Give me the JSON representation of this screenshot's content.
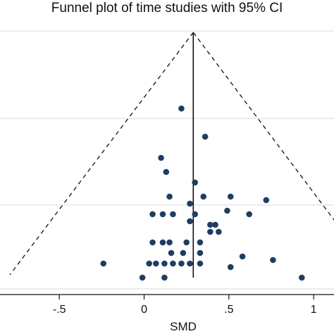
{
  "chart_data": {
    "type": "scatter",
    "title": "Funnel plot of time studies with 95% CI",
    "xlabel": "SMD",
    "ylabel": "",
    "x_ticks": [
      -0.5,
      0,
      0.5,
      1
    ],
    "x_tick_labels": [
      "-.5",
      "0",
      ".5",
      "1"
    ],
    "xlim": [
      -0.85,
      1.12
    ],
    "pooled_smd": 0.29,
    "grid": true,
    "legend": "none",
    "colors": {
      "points": "#1f3d63",
      "lines": "#111111",
      "grid": "#dde3ea"
    },
    "points": [
      {
        "x": 0.22,
        "y": 0.2
      },
      {
        "x": 0.36,
        "y": 0.28
      },
      {
        "x": 0.1,
        "y": 0.34
      },
      {
        "x": 0.13,
        "y": 0.38
      },
      {
        "x": 0.3,
        "y": 0.41
      },
      {
        "x": 0.15,
        "y": 0.45
      },
      {
        "x": 0.35,
        "y": 0.45
      },
      {
        "x": 0.51,
        "y": 0.45
      },
      {
        "x": 0.72,
        "y": 0.46
      },
      {
        "x": 0.27,
        "y": 0.47
      },
      {
        "x": 0.05,
        "y": 0.5
      },
      {
        "x": 0.11,
        "y": 0.5
      },
      {
        "x": 0.17,
        "y": 0.5
      },
      {
        "x": 0.3,
        "y": 0.5
      },
      {
        "x": 0.49,
        "y": 0.49
      },
      {
        "x": 0.62,
        "y": 0.5
      },
      {
        "x": 0.27,
        "y": 0.52
      },
      {
        "x": 0.39,
        "y": 0.53
      },
      {
        "x": 0.42,
        "y": 0.53
      },
      {
        "x": 0.39,
        "y": 0.55
      },
      {
        "x": 0.44,
        "y": 0.55
      },
      {
        "x": 0.05,
        "y": 0.58
      },
      {
        "x": 0.11,
        "y": 0.58
      },
      {
        "x": 0.15,
        "y": 0.58
      },
      {
        "x": 0.25,
        "y": 0.58
      },
      {
        "x": 0.33,
        "y": 0.58
      },
      {
        "x": 0.16,
        "y": 0.61
      },
      {
        "x": 0.23,
        "y": 0.61
      },
      {
        "x": 0.33,
        "y": 0.61
      },
      {
        "x": 0.58,
        "y": 0.62
      },
      {
        "x": -0.24,
        "y": 0.64
      },
      {
        "x": 0.03,
        "y": 0.64
      },
      {
        "x": 0.07,
        "y": 0.64
      },
      {
        "x": 0.12,
        "y": 0.64
      },
      {
        "x": 0.17,
        "y": 0.64
      },
      {
        "x": 0.22,
        "y": 0.64
      },
      {
        "x": 0.27,
        "y": 0.64
      },
      {
        "x": 0.33,
        "y": 0.64
      },
      {
        "x": 0.76,
        "y": 0.63
      },
      {
        "x": 0.51,
        "y": 0.65
      },
      {
        "x": -0.01,
        "y": 0.68
      },
      {
        "x": 0.12,
        "y": 0.68
      },
      {
        "x": 0.93,
        "y": 0.68
      }
    ]
  }
}
